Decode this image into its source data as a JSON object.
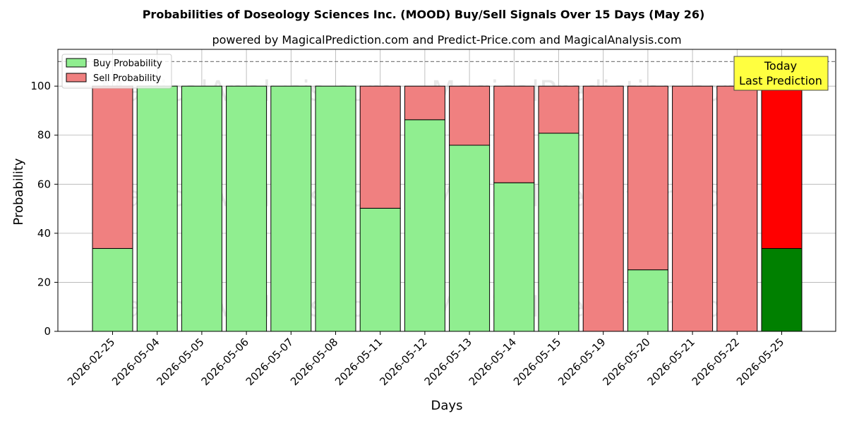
{
  "chart_data": {
    "type": "bar",
    "stacked": true,
    "title": "Probabilities of Doseology Sciences Inc. (MOOD) Buy/Sell Signals Over 15 Days (May 26)",
    "subtitle": "powered by MagicalPrediction.com and Predict-Price.com and MagicalAnalysis.com",
    "xlabel": "Days",
    "ylabel": "Probability",
    "ylim": [
      0,
      115
    ],
    "yticks": [
      0,
      20,
      40,
      60,
      80,
      100
    ],
    "grid": true,
    "legend_position": "top-left",
    "reference_line": 110,
    "categories": [
      "2026-02-25",
      "2026-05-04",
      "2026-05-05",
      "2026-05-06",
      "2026-05-07",
      "2026-05-08",
      "2026-05-11",
      "2026-05-12",
      "2026-05-13",
      "2026-05-14",
      "2026-05-15",
      "2026-05-19",
      "2026-05-20",
      "2026-05-21",
      "2026-05-22",
      "2026-05-25"
    ],
    "series": [
      {
        "name": "Buy Probability",
        "color": "#90ee90",
        "values": [
          33.8,
          100,
          100,
          100,
          100,
          100,
          50.2,
          86.3,
          75.9,
          60.6,
          80.8,
          0,
          25.1,
          0,
          0,
          33.8
        ]
      },
      {
        "name": "Sell Probability",
        "color": "#f08080",
        "values": [
          66.2,
          0,
          0,
          0,
          0,
          0,
          49.8,
          13.7,
          24.1,
          39.4,
          19.2,
          100,
          74.9,
          100,
          100,
          66.2
        ]
      }
    ],
    "highlight": {
      "index": 15,
      "buy_color": "#008000",
      "sell_color": "#ff0000"
    },
    "annotation": {
      "line1": "Today",
      "line2": "Last Prediction",
      "background": "#ffff40"
    },
    "watermarks": [
      "MagicalAnalysis.com",
      "MagicalPrediction.com"
    ]
  }
}
